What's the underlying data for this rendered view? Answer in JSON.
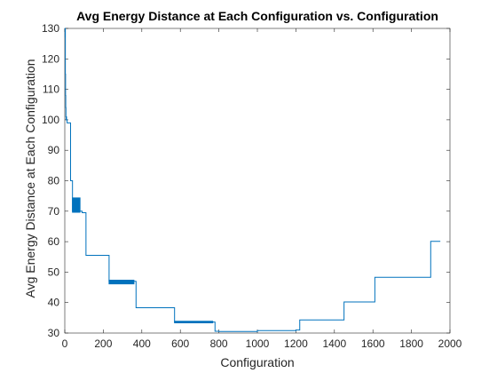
{
  "chart_data": {
    "type": "line",
    "title": "Avg Energy Distance at Each Configuration vs. Configuration",
    "xlabel": "Configuration",
    "ylabel": "Avg Energy Distance at Each Configuration",
    "xlim": [
      0,
      2000
    ],
    "ylim": [
      30,
      130
    ],
    "xticks": [
      0,
      200,
      400,
      600,
      800,
      1000,
      1200,
      1400,
      1600,
      1800,
      2000
    ],
    "yticks": [
      30,
      40,
      50,
      60,
      70,
      80,
      90,
      100,
      110,
      120,
      130
    ],
    "grid": false,
    "legend": "none",
    "line_color": "#0072BD",
    "series": [
      {
        "x": [
          1,
          2,
          3,
          4,
          5,
          6,
          7,
          8,
          9,
          10,
          12,
          15,
          18,
          22,
          26,
          30,
          30,
          40,
          50,
          60,
          70,
          80,
          90,
          110,
          220,
          230,
          240,
          370,
          570,
          760,
          780,
          800,
          1000,
          1200,
          1220,
          1440,
          1450,
          1600,
          1610,
          1890,
          1900,
          1950
        ],
        "y": [
          127,
          130,
          115,
          108,
          104,
          101,
          100,
          101,
          100,
          100,
          99,
          99,
          99,
          99,
          99,
          99,
          80,
          70,
          70,
          70,
          70,
          70,
          69.5,
          55.5,
          55.5,
          47,
          47,
          38.3,
          33.6,
          33.6,
          30.6,
          30.5,
          30.8,
          31,
          34.3,
          34.3,
          40.2,
          40.2,
          48.3,
          48.3,
          60.1,
          60.1
        ]
      }
    ],
    "oscillations": [
      {
        "x_start": 40,
        "x_end": 80,
        "low": 69.5,
        "high": 74.5
      },
      {
        "x_start": 230,
        "x_end": 360,
        "low": 46,
        "high": 47.5
      },
      {
        "x_start": 570,
        "x_end": 770,
        "low": 33.2,
        "high": 34
      }
    ]
  }
}
